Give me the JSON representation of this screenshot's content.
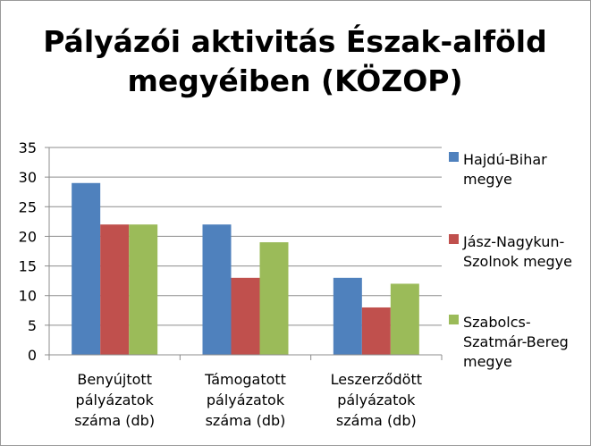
{
  "chart_data": {
    "type": "bar",
    "title_lines": [
      "Pályázói aktivitás Észak-alföld",
      "megyéiben (KÖZOP)"
    ],
    "categories": [
      [
        "Benyújtott",
        "pályázatok",
        "száma (db)"
      ],
      [
        "Támogatott",
        "pályázatok",
        "száma (db)"
      ],
      [
        "Leszerződött",
        "pályázatok",
        "száma (db)"
      ]
    ],
    "series": [
      {
        "name_lines": [
          "Hajdú-Bihar",
          "megye"
        ],
        "color": "#4F81BD",
        "values": [
          29,
          22,
          13
        ]
      },
      {
        "name_lines": [
          "Jász-Nagykun-",
          "Szolnok megye"
        ],
        "color": "#C0504D",
        "values": [
          22,
          13,
          8
        ]
      },
      {
        "name_lines": [
          "Szabolcs-",
          "Szatmár-Bereg",
          "megye"
        ],
        "color": "#9BBB59",
        "values": [
          22,
          19,
          12
        ]
      }
    ],
    "ylim": [
      0,
      35
    ],
    "yticks": [
      "0",
      "5",
      "10",
      "15",
      "20",
      "25",
      "30",
      "35"
    ],
    "grid": true,
    "legend_position": "right"
  }
}
